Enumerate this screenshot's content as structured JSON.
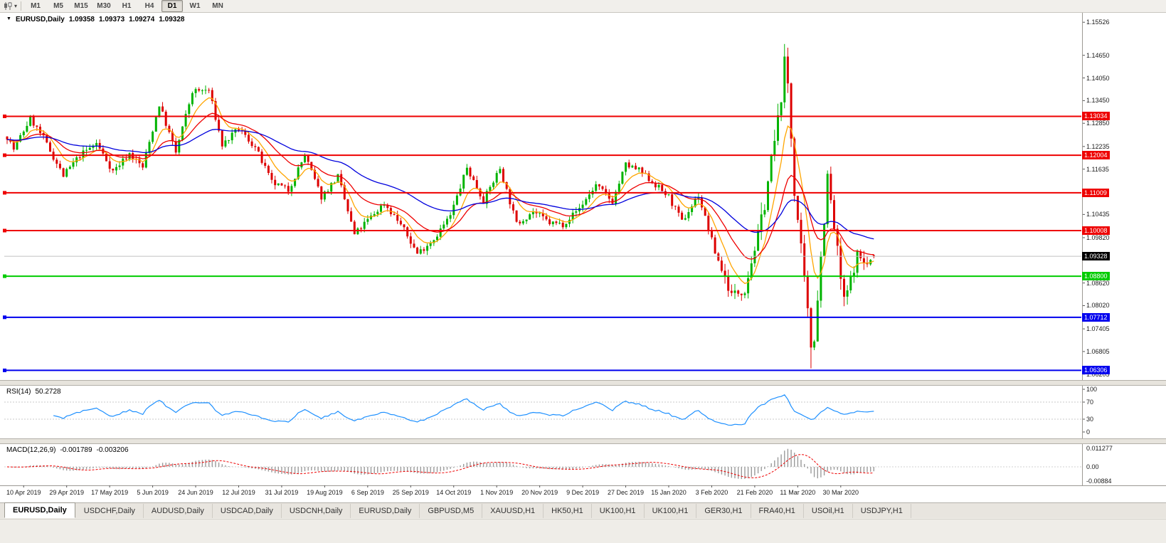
{
  "icons": {
    "context_triangle": "▼",
    "dropdown_caret": "▾"
  },
  "toolbar": {
    "timeframes": [
      {
        "label": "M1",
        "active": false
      },
      {
        "label": "M5",
        "active": false
      },
      {
        "label": "M15",
        "active": false
      },
      {
        "label": "M30",
        "active": false
      },
      {
        "label": "H1",
        "active": false
      },
      {
        "label": "H4",
        "active": false
      },
      {
        "label": "D1",
        "active": true
      },
      {
        "label": "W1",
        "active": false
      },
      {
        "label": "MN",
        "active": false
      }
    ]
  },
  "chart": {
    "title": {
      "symbol": "EURUSD,Daily",
      "open": "1.09358",
      "high": "1.09373",
      "low": "1.09274",
      "close": "1.09328"
    },
    "price_axis_labels": [
      "1.15526",
      "1.14650",
      "1.14050",
      "1.13450",
      "1.12850",
      "1.12235",
      "1.11635",
      "1.10435",
      "1.09820",
      "1.08620",
      "1.08020",
      "1.07405",
      "1.06805",
      "1.06205"
    ],
    "current_price": {
      "label": "1.09328",
      "price": 1.09328,
      "box_color": "#000000",
      "line_color": "#c0c0c0"
    },
    "hlines": [
      {
        "price": 1.13034,
        "label": "1.13034",
        "color": "#ee0000",
        "width": 2
      },
      {
        "price": 1.12004,
        "label": "1.12004",
        "color": "#ee0000",
        "width": 2
      },
      {
        "price": 1.11009,
        "label": "1.11009",
        "color": "#ee0000",
        "width": 2
      },
      {
        "price": 1.10008,
        "label": "1.10008",
        "color": "#ee0000",
        "width": 2
      },
      {
        "price": 1.088,
        "label": "1.08800",
        "color": "#00cc00",
        "width": 2
      },
      {
        "price": 1.07712,
        "label": "1.07712",
        "color": "#0000ee",
        "width": 2
      },
      {
        "price": 1.06306,
        "label": "1.06306",
        "color": "#0000ee",
        "width": 2
      }
    ],
    "date_labels": [
      "10 Apr 2019",
      "29 Apr 2019",
      "17 May 2019",
      "5 Jun 2019",
      "24 Jun 2019",
      "12 Jul 2019",
      "31 Jul 2019",
      "19 Aug 2019",
      "6 Sep 2019",
      "25 Sep 2019",
      "14 Oct 2019",
      "1 Nov 2019",
      "20 Nov 2019",
      "9 Dec 2019",
      "27 Dec 2019",
      "15 Jan 2020",
      "3 Feb 2020",
      "21 Feb 2020",
      "11 Mar 2020",
      "30 Mar 2020"
    ]
  },
  "rsi": {
    "label": "RSI(14)",
    "value": "50.2728",
    "period": 14,
    "axis_labels": [
      "100",
      "70",
      "30",
      "0"
    ],
    "level_lines": [
      70,
      30
    ],
    "line_color": "#1e90ff"
  },
  "macd": {
    "label": "MACD(12,26,9)",
    "macd_value": "-0.001789",
    "signal_value": "-0.003206",
    "axis_labels": [
      "0.011277",
      "0.00",
      "-0.00884"
    ],
    "range": {
      "max": 0.011277,
      "min": -0.00884
    },
    "histogram_color": "#9b9b9b",
    "signal_color": "#ee0000"
  },
  "tabs": [
    {
      "label": "EURUSD,Daily",
      "active": true
    },
    {
      "label": "USDCHF,Daily",
      "active": false
    },
    {
      "label": "AUDUSD,Daily",
      "active": false
    },
    {
      "label": "USDCAD,Daily",
      "active": false
    },
    {
      "label": "USDCNH,Daily",
      "active": false
    },
    {
      "label": "EURUSD,Daily",
      "active": false
    },
    {
      "label": "GBPUSD,M5",
      "active": false
    },
    {
      "label": "XAUUSD,H1",
      "active": false
    },
    {
      "label": "HK50,H1",
      "active": false
    },
    {
      "label": "UK100,H1",
      "active": false
    },
    {
      "label": "UK100,H1",
      "active": false
    },
    {
      "label": "GER30,H1",
      "active": false
    },
    {
      "label": "FRA40,H1",
      "active": false
    },
    {
      "label": "USOil,H1",
      "active": false
    },
    {
      "label": "USDJPY,H1",
      "active": false
    }
  ],
  "chart_data": {
    "type": "candlestick",
    "symbol": "EURUSD",
    "timeframe": "Daily",
    "num_candles": 263,
    "y_range": {
      "max": 1.157,
      "min": 1.0605
    },
    "x_axis": {
      "first_label_candle": 5,
      "label_every": 13
    },
    "up_color": "#00b300",
    "down_color": "#dd0000",
    "anchors": [
      [
        0,
        1.125
      ],
      [
        2,
        1.1216
      ],
      [
        7,
        1.1298
      ],
      [
        11,
        1.1245
      ],
      [
        17,
        1.1146
      ],
      [
        22,
        1.12
      ],
      [
        27,
        1.1232
      ],
      [
        32,
        1.1158
      ],
      [
        37,
        1.1205
      ],
      [
        41,
        1.1168
      ],
      [
        46,
        1.1335
      ],
      [
        51,
        1.1207
      ],
      [
        56,
        1.1369
      ],
      [
        61,
        1.1373
      ],
      [
        65,
        1.1227
      ],
      [
        70,
        1.127
      ],
      [
        75,
        1.1221
      ],
      [
        80,
        1.1128
      ],
      [
        85,
        1.1108
      ],
      [
        90,
        1.12
      ],
      [
        95,
        1.109
      ],
      [
        100,
        1.1144
      ],
      [
        105,
        1.099
      ],
      [
        109,
        1.1028
      ],
      [
        114,
        1.1073
      ],
      [
        119,
        1.1017
      ],
      [
        124,
        1.094
      ],
      [
        129,
        1.0979
      ],
      [
        134,
        1.104
      ],
      [
        139,
        1.1167
      ],
      [
        144,
        1.108
      ],
      [
        149,
        1.1166
      ],
      [
        154,
        1.1018
      ],
      [
        159,
        1.1052
      ],
      [
        164,
        1.1021
      ],
      [
        168,
        1.1018
      ],
      [
        173,
        1.106
      ],
      [
        178,
        1.1121
      ],
      [
        183,
        1.1078
      ],
      [
        187,
        1.1175
      ],
      [
        191,
        1.116
      ],
      [
        196,
        1.1122
      ],
      [
        200,
        1.109
      ],
      [
        204,
        1.1024
      ],
      [
        209,
        1.1094
      ],
      [
        214,
        1.0945
      ],
      [
        219,
        1.083
      ],
      [
        223,
        1.0846
      ],
      [
        228,
        1.1026
      ],
      [
        233,
        1.1288
      ],
      [
        235,
        1.144
      ],
      [
        236,
        1.139
      ],
      [
        238,
        1.1109
      ],
      [
        243,
        1.0696
      ],
      [
        244,
        1.0724
      ],
      [
        248,
        1.114
      ],
      [
        253,
        1.0808
      ],
      [
        257,
        1.0936
      ],
      [
        260,
        1.091
      ],
      [
        262,
        1.0933
      ]
    ],
    "spike_high": [
      235,
      1.1495
    ],
    "spike_low": [
      243,
      1.0636
    ],
    "ma_lines": [
      {
        "name": "fast-ma",
        "period": 8,
        "color": "#ffa500"
      },
      {
        "name": "medium-ma",
        "period": 20,
        "color": "#ee0000"
      },
      {
        "name": "slow-ma",
        "period": 50,
        "color": "#0000dd"
      }
    ]
  }
}
